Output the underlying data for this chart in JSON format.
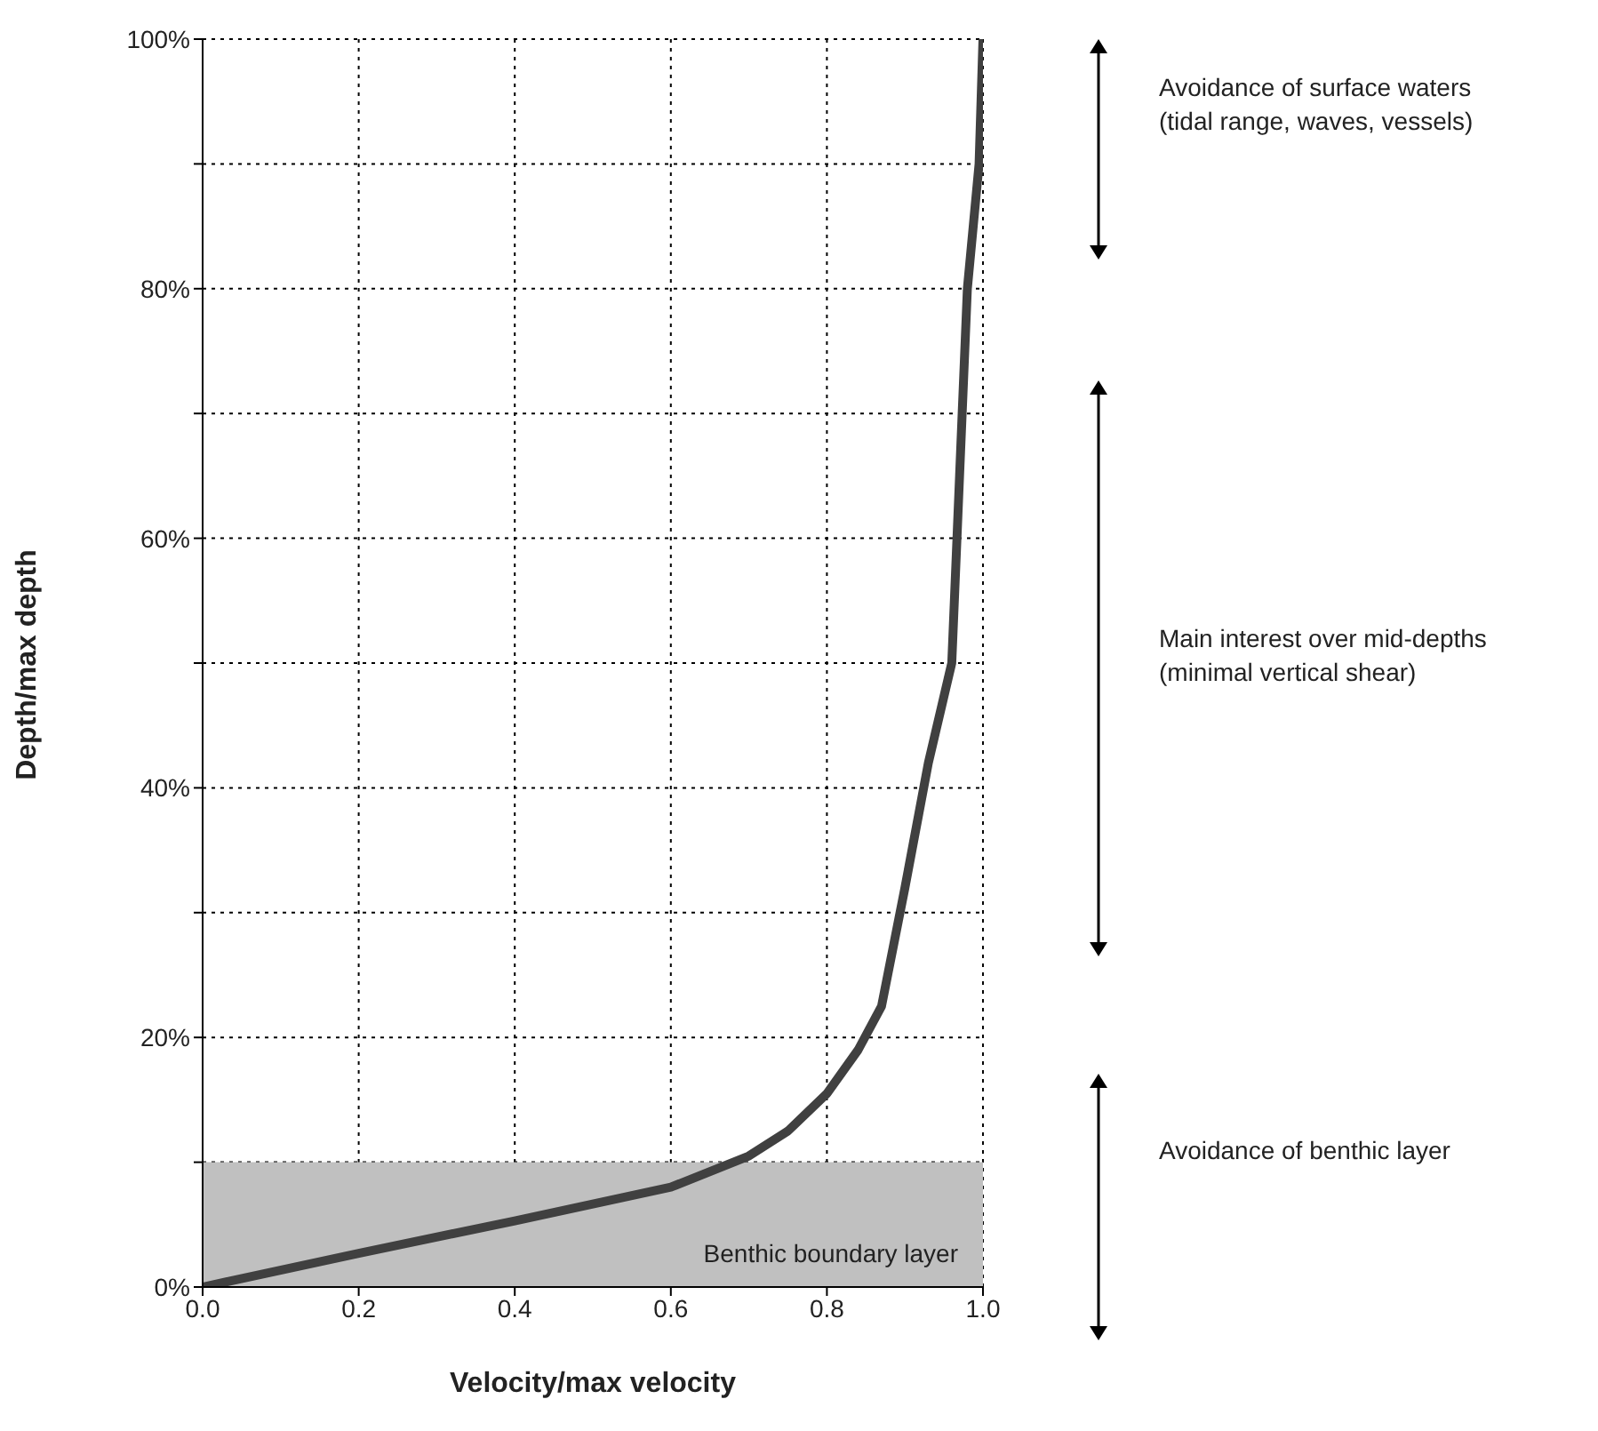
{
  "chart_data": {
    "type": "line",
    "xlabel": "Velocity/max velocity",
    "ylabel": "Depth/max depth",
    "x": [
      0,
      0.2,
      0.4,
      0.6,
      0.7,
      0.75,
      0.8,
      0.84,
      0.87,
      0.9,
      0.93,
      0.96,
      0.97,
      0.98,
      0.995,
      1.0
    ],
    "series": [
      {
        "color": "#404040",
        "values": [
          0,
          2.7,
          5.3,
          8,
          10.5,
          12.5,
          15.5,
          19,
          22.5,
          32,
          42,
          50,
          65,
          80,
          90,
          100
        ]
      }
    ],
    "xlim": [
      0,
      1
    ],
    "xticks": [
      {
        "value": 0,
        "label": "0.0"
      },
      {
        "value": 0.2,
        "label": "0.2"
      },
      {
        "value": 0.4,
        "label": "0.4"
      },
      {
        "value": 0.6,
        "label": "0.6"
      },
      {
        "value": 0.8,
        "label": "0.8"
      },
      {
        "value": 1,
        "label": "1.0"
      }
    ],
    "ylim": [
      0,
      100
    ],
    "yticks": [
      {
        "value": 0,
        "label": "0%"
      },
      {
        "value": 10,
        "label": null
      },
      {
        "value": 20,
        "label": "20%"
      },
      {
        "value": 30,
        "label": null
      },
      {
        "value": 40,
        "label": "40%"
      },
      {
        "value": 50,
        "label": null
      },
      {
        "value": 60,
        "label": "60%"
      },
      {
        "value": 70,
        "label": null
      },
      {
        "value": 80,
        "label": "80%"
      },
      {
        "value": 90,
        "label": null
      },
      {
        "value": 100,
        "label": "100%"
      }
    ],
    "bands": [
      {
        "axis": "y",
        "from": 0,
        "to": 10,
        "label": "Benthic boundary layer",
        "color": "#c0c0c0"
      }
    ],
    "annotations": [
      "Avoidance of surface waters\n(tidal range, waves, vessels)",
      "Main interest over mid-depths\n(minimal vertical shear)",
      "Avoidance of benthic layer"
    ],
    "grid": true,
    "line_style": "solid",
    "marker": "none"
  }
}
